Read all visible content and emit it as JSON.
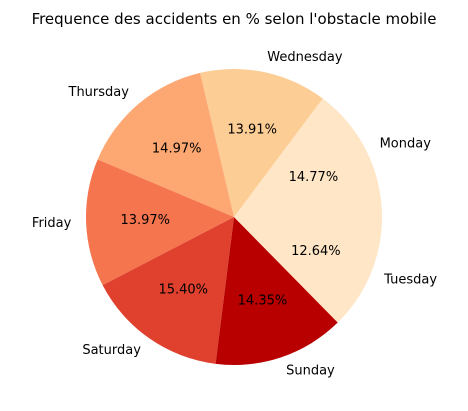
{
  "chart_data": {
    "type": "pie",
    "title": "Frequence des accidents en % selon l'obstacle mobile",
    "start_angle_deg": 0,
    "direction": "counterclockwise",
    "slices": [
      {
        "label": "Monday",
        "value": 14.77,
        "pct_text": "14.77%",
        "color": "#fee6c6"
      },
      {
        "label": "Wednesday",
        "value": 13.91,
        "pct_text": "13.91%",
        "color": "#fdcd96"
      },
      {
        "label": "Thursday",
        "value": 14.97,
        "pct_text": "14.97%",
        "color": "#fda872"
      },
      {
        "label": "Friday",
        "value": 13.97,
        "pct_text": "13.97%",
        "color": "#f5754f"
      },
      {
        "label": "Saturday",
        "value": 15.4,
        "pct_text": "15.40%",
        "color": "#df412e"
      },
      {
        "label": "Sunday",
        "value": 14.35,
        "pct_text": "14.35%",
        "color": "#b80000"
      },
      {
        "label": "Tuesday",
        "value": 12.64,
        "pct_text": "12.64%",
        "color": "#fee6c6"
      }
    ]
  }
}
